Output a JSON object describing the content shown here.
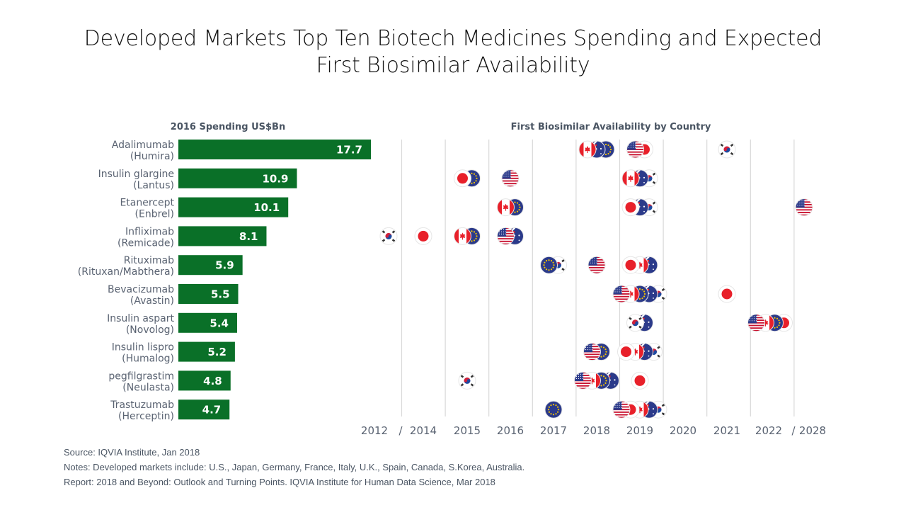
{
  "title": {
    "line1": "Developed Markets Top Ten Biotech Medicines Spending and Expected",
    "line2": "First Biosimilar Availability"
  },
  "notes": {
    "source": "Source: IQVIA Institute, Jan 2018",
    "notes": "Notes: Developed markets include: U.S., Japan, Germany, France, Italy, U.K., Spain, Canada, S.Korea, Australia.",
    "report": "Report: 2018 and Beyond: Outlook and Turning Points. IQVIA Institute for Human Data Science, Mar 2018"
  },
  "colors": {
    "bar": "#0a7028",
    "grid": "#d9d9d9"
  },
  "chart_data": [
    {
      "type": "bar",
      "orientation": "horizontal",
      "title": "2016 Spending US$Bn",
      "categories": [
        [
          "Adalimumab",
          "(Humira)"
        ],
        [
          "Insulin glargine",
          "(Lantus)"
        ],
        [
          "Etanercept",
          "(Enbrel)"
        ],
        [
          "Infliximab",
          "(Remicade)"
        ],
        [
          "Rituximab",
          "(Rituxan/Mabthera)"
        ],
        [
          "Bevacizumab",
          "(Avastin)"
        ],
        [
          "Insulin aspart",
          "(Novolog)"
        ],
        [
          "Insulin lispro",
          "(Humalog)"
        ],
        [
          "pegfilgrastim",
          "(Neulasta)"
        ],
        [
          "Trastuzumab",
          "(Herceptin)"
        ]
      ],
      "values": [
        17.7,
        10.9,
        10.1,
        8.1,
        5.9,
        5.5,
        5.4,
        5.2,
        4.8,
        4.7
      ],
      "xlim": [
        0,
        17.7
      ],
      "data_labels": true
    },
    {
      "type": "scatter",
      "title": "First Biosimilar Availability by Country",
      "x_ticks": [
        "2012",
        "/",
        "2014",
        "2015",
        "2016",
        "2017",
        "2018",
        "2019",
        "2020",
        "2021",
        "2022",
        "/",
        "2028"
      ],
      "columns": [
        "2012",
        "2014",
        "2015",
        "2016",
        "2017",
        "2018",
        "2019",
        "2020",
        "2021",
        "2022",
        "2028"
      ],
      "grid": true,
      "legend": "none (country flags as markers)",
      "rows": [
        {
          "drug": "Adalimumab",
          "points": [
            {
              "year": "2018",
              "countries": [
                "CA",
                "AU",
                "EU"
              ]
            },
            {
              "year": "2019",
              "countries": [
                "US",
                "JP"
              ]
            },
            {
              "year": "2021",
              "countries": [
                "KR"
              ]
            }
          ]
        },
        {
          "drug": "Insulin glargine",
          "points": [
            {
              "year": "2015",
              "countries": [
                "JP",
                "EU"
              ]
            },
            {
              "year": "2016",
              "countries": [
                "US"
              ]
            },
            {
              "year": "2019",
              "countries": [
                "CA",
                "AU",
                "KR"
              ]
            }
          ]
        },
        {
          "drug": "Etanercept",
          "points": [
            {
              "year": "2016",
              "countries": [
                "CA",
                "EU"
              ]
            },
            {
              "year": "2019",
              "countries": [
                "JP",
                "AU",
                "KR"
              ]
            },
            {
              "year": "2028",
              "countries": [
                "US"
              ]
            }
          ]
        },
        {
          "drug": "Infliximab",
          "points": [
            {
              "year": "2012",
              "countries": [
                "KR"
              ]
            },
            {
              "year": "2014",
              "countries": [
                "JP"
              ]
            },
            {
              "year": "2015",
              "countries": [
                "CA",
                "EU"
              ]
            },
            {
              "year": "2016",
              "countries": [
                "US",
                "AU"
              ]
            }
          ]
        },
        {
          "drug": "Rituximab",
          "points": [
            {
              "year": "2017",
              "countries": [
                "EU",
                "KR"
              ]
            },
            {
              "year": "2018",
              "countries": [
                "US"
              ]
            },
            {
              "year": "2019",
              "countries": [
                "JP",
                "CA",
                "AU"
              ]
            }
          ]
        },
        {
          "drug": "Bevacizumab",
          "points": [
            {
              "year": "2019",
              "countries": [
                "US",
                "CA",
                "EU",
                "AU",
                "KR"
              ]
            },
            {
              "year": "2021",
              "countries": [
                "JP"
              ]
            }
          ]
        },
        {
          "drug": "Insulin aspart",
          "points": [
            {
              "year": "2019",
              "countries": [
                "KR",
                "AU"
              ]
            },
            {
              "year": "2022",
              "countries": [
                "US",
                "CA",
                "EU",
                "JP"
              ]
            }
          ]
        },
        {
          "drug": "Insulin lispro",
          "points": [
            {
              "year": "2018",
              "countries": [
                "US",
                "EU"
              ]
            },
            {
              "year": "2019",
              "countries": [
                "JP",
                "CA",
                "AU",
                "KR"
              ]
            }
          ]
        },
        {
          "drug": "pegfilgrastim",
          "points": [
            {
              "year": "2015",
              "countries": [
                "KR"
              ]
            },
            {
              "year": "2018",
              "countries": [
                "US",
                "CA",
                "EU",
                "AU"
              ]
            },
            {
              "year": "2019",
              "countries": [
                "JP"
              ]
            }
          ]
        },
        {
          "drug": "Trastuzumab",
          "points": [
            {
              "year": "2017",
              "countries": [
                "EU"
              ]
            },
            {
              "year": "2019",
              "countries": [
                "US",
                "JP",
                "CA",
                "AU",
                "KR"
              ]
            }
          ]
        }
      ],
      "country_icons": {
        "US": "usa-flag-icon",
        "JP": "japan-flag-icon",
        "CA": "canada-flag-icon",
        "AU": "australia-flag-icon",
        "EU": "eu-flag-icon",
        "KR": "south-korea-flag-icon"
      }
    }
  ]
}
